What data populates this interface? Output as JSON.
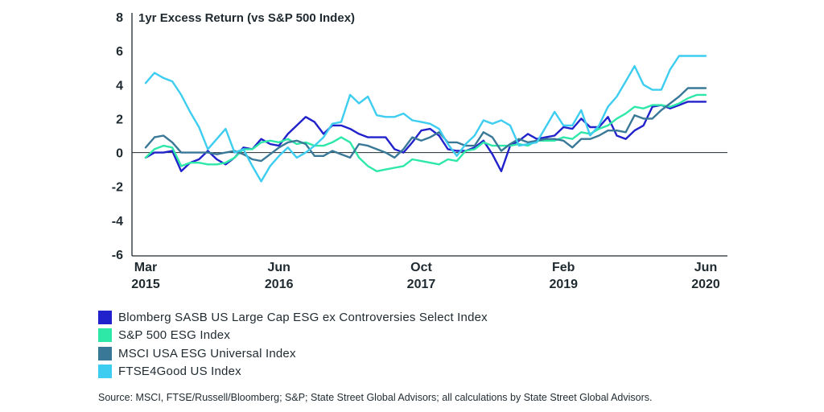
{
  "chart_data": {
    "type": "line",
    "title": "1yr Excess Return (vs S&P 500 Index)",
    "ylim": [
      -6,
      8
    ],
    "yticks": [
      -6,
      -4,
      -2,
      0,
      2,
      4,
      6,
      8
    ],
    "grid": false,
    "legend_position": "bottom-left",
    "x_tick_labels": [
      {
        "month": "Mar",
        "year": "2015",
        "index": 0
      },
      {
        "month": "Jun",
        "year": "2016",
        "index": 15
      },
      {
        "month": "Oct",
        "year": "2017",
        "index": 31
      },
      {
        "month": "Feb",
        "year": "2019",
        "index": 47
      },
      {
        "month": "Jun",
        "year": "2020",
        "index": 63
      }
    ],
    "x_count": 64,
    "series": [
      {
        "name": "Blomberg SASB US Large Cap ESG ex Controversies Select Index",
        "color": "#2222cc",
        "values": [
          -0.3,
          0,
          0,
          0.1,
          -1.1,
          -0.6,
          -0.4,
          0.1,
          -0.4,
          -0.7,
          -0.3,
          0.3,
          0.2,
          0.8,
          0.5,
          0.4,
          1.1,
          1.6,
          2.1,
          1.8,
          1.1,
          1.6,
          1.6,
          1.4,
          1.1,
          0.9,
          0.9,
          0.9,
          0.2,
          0,
          0.6,
          1.3,
          1.4,
          1.0,
          0.2,
          0.1,
          0.1,
          0.3,
          0.7,
          -0.1,
          -1.1,
          0.4,
          0.7,
          1.1,
          0.8,
          0.9,
          1.0,
          1.5,
          1.4,
          2.0,
          1.5,
          1.5,
          2.1,
          1.0,
          0.8,
          1.3,
          1.6,
          2.7,
          2.8,
          2.6,
          2.8,
          3.0,
          3.0,
          3.0
        ]
      },
      {
        "name": "S&P 500 ESG Index",
        "color": "#2ee8a8",
        "values": [
          -0.3,
          0.2,
          0.4,
          0.3,
          -0.8,
          -0.6,
          -0.6,
          -0.7,
          -0.7,
          -0.6,
          -0.3,
          0.2,
          0.2,
          0.6,
          0.7,
          0.6,
          0.8,
          0.5,
          0.6,
          0.4,
          0.4,
          0.6,
          0.9,
          0.6,
          -0.3,
          -0.8,
          -1.1,
          -1.0,
          -0.9,
          -0.8,
          -0.4,
          -0.5,
          -0.6,
          -0.7,
          -0.4,
          -0.5,
          0.1,
          0.2,
          0.6,
          0.4,
          0.4,
          0.4,
          0.5,
          0.4,
          0.7,
          0.7,
          0.7,
          0.9,
          0.8,
          1.2,
          1.1,
          1.4,
          1.6,
          2.0,
          2.3,
          2.7,
          2.6,
          2.8,
          2.8,
          2.7,
          2.9,
          3.2,
          3.4,
          3.4
        ]
      },
      {
        "name": "MSCI USA ESG Universal Index",
        "color": "#3a7898",
        "values": [
          0.3,
          0.9,
          1.0,
          0.6,
          0,
          0,
          0,
          0,
          -0.1,
          0,
          0.1,
          -0.1,
          -0.4,
          -0.5,
          -0.1,
          0.3,
          0.6,
          0.7,
          0.5,
          -0.2,
          -0.2,
          0.1,
          -0.1,
          -0.3,
          0.5,
          0.4,
          0.2,
          0.0,
          -0.3,
          0.2,
          0.9,
          0.7,
          0.9,
          1.2,
          0.6,
          0.6,
          0.4,
          0.4,
          1.2,
          0.9,
          0.1,
          0.5,
          0.8,
          0.6,
          0.7,
          0.8,
          0.8,
          0.7,
          0.3,
          0.8,
          0.8,
          1.0,
          1.3,
          1.3,
          1.2,
          2.2,
          2.0,
          2.0,
          2.5,
          2.9,
          3.3,
          3.8,
          3.8,
          3.8
        ]
      },
      {
        "name": "FTSE4Good US Index",
        "color": "#3dcdf0",
        "values": [
          4.1,
          4.7,
          4.4,
          4.2,
          3.4,
          2.4,
          1.5,
          0.2,
          0.8,
          1.4,
          0.0,
          0.2,
          -0.8,
          -1.7,
          -0.8,
          -0.2,
          0.3,
          -0.3,
          0.0,
          0.4,
          0.9,
          1.7,
          1.8,
          3.4,
          2.9,
          3.3,
          2.2,
          2.1,
          2.1,
          2.3,
          1.9,
          1.8,
          1.7,
          1.4,
          0.5,
          -0.2,
          0.5,
          1.0,
          1.9,
          1.7,
          1.9,
          1.6,
          0.4,
          0.5,
          0.6,
          1.5,
          2.4,
          1.6,
          1.6,
          2.5,
          1.0,
          1.6,
          2.7,
          3.3,
          4.2,
          5.1,
          4.0,
          3.7,
          3.7,
          4.9,
          5.7,
          5.7,
          5.7,
          5.7
        ]
      }
    ]
  },
  "source_text": "Source: MSCI, FTSE/Russell/Bloomberg; S&P; State Street Global Advisors; all calculations by State Street Global Advisors."
}
